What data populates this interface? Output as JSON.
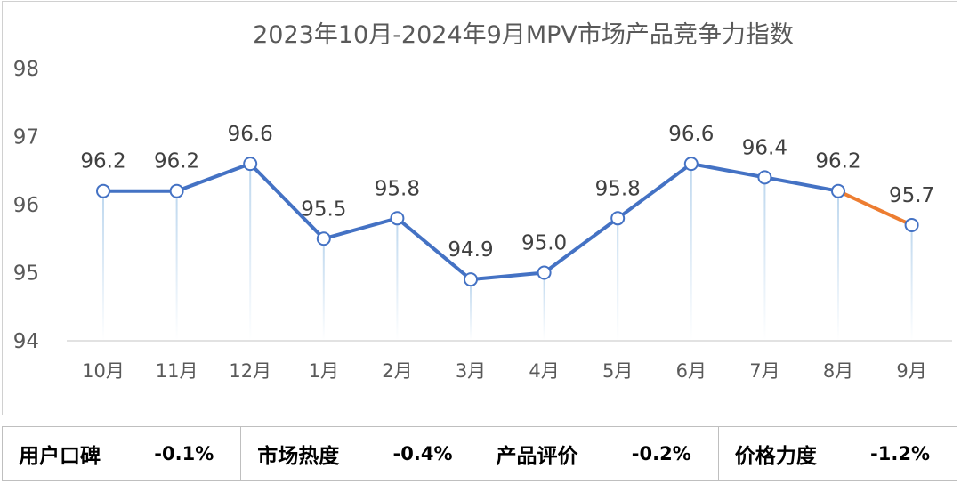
{
  "chart_data": {
    "type": "line",
    "title": "2023年10月-2024年9月MPV市场产品竞争力指数",
    "categories": [
      "10月",
      "11月",
      "12月",
      "1月",
      "2月",
      "3月",
      "4月",
      "5月",
      "6月",
      "7月",
      "8月",
      "9月"
    ],
    "values": [
      96.2,
      96.2,
      96.6,
      95.5,
      95.8,
      94.9,
      95.0,
      95.8,
      96.6,
      96.4,
      96.2,
      95.7
    ],
    "data_labels": [
      "96.2",
      "96.2",
      "96.6",
      "95.5",
      "95.8",
      "94.9",
      "95.0",
      "95.8",
      "96.6",
      "96.4",
      "96.2",
      "95.7"
    ],
    "yticks": [
      "94",
      "95",
      "96",
      "97",
      "98"
    ],
    "ylim": [
      94,
      98
    ],
    "grid": false,
    "colors": {
      "line": "#4472C4",
      "last_segment": "#ED7D31",
      "drop_line": "#BDD7EE",
      "axis": "#D9D9D9"
    }
  },
  "metrics": [
    {
      "label": "用户口碑",
      "value": "-0.1%"
    },
    {
      "label": "市场热度",
      "value": "-0.4%"
    },
    {
      "label": "产品评价",
      "value": "-0.2%"
    },
    {
      "label": "价格力度",
      "value": "-1.2%"
    }
  ]
}
